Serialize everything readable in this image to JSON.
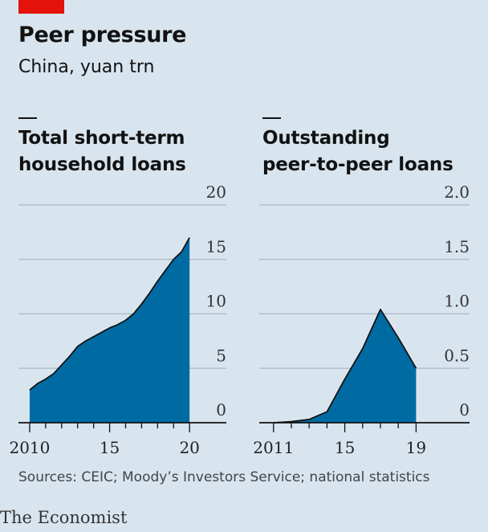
{
  "header": {
    "title": "Peer pressure",
    "subtitle": "China, yuan trn"
  },
  "colors": {
    "accent": "#e3120b",
    "fill": "#006ba2",
    "background": "#d8e5ef",
    "grid": "#a9b9c6"
  },
  "chart_data": [
    {
      "type": "area",
      "title_lines": [
        "Total short-term",
        "household loans"
      ],
      "xlim": [
        2009.3,
        2022.3
      ],
      "ylim": [
        0,
        20
      ],
      "yticks": [
        0,
        5,
        10,
        15,
        20
      ],
      "ytick_labels": [
        "0",
        "5",
        "10",
        "15",
        "20"
      ],
      "xticks": [
        2010,
        2011,
        2012,
        2013,
        2014,
        2015,
        2016,
        2017,
        2018,
        2019,
        2020
      ],
      "xtick_labels": [
        {
          "x": 2010,
          "label": "2010"
        },
        {
          "x": 2015,
          "label": "15"
        },
        {
          "x": 2020,
          "label": "20"
        }
      ],
      "series": [
        {
          "x": [
            2010.0,
            2010.5,
            2011.0,
            2011.5,
            2012.0,
            2012.5,
            2013.0,
            2013.5,
            2014.0,
            2014.5,
            2015.0,
            2015.5,
            2016.0,
            2016.5,
            2017.0,
            2017.5,
            2018.0,
            2018.5,
            2019.0,
            2019.5,
            2020.0
          ],
          "values": [
            3.0,
            3.6,
            4.0,
            4.5,
            5.3,
            6.1,
            7.0,
            7.5,
            7.9,
            8.3,
            8.7,
            9.0,
            9.4,
            10.0,
            10.9,
            11.9,
            13.0,
            14.0,
            15.0,
            15.7,
            17.0
          ]
        }
      ]
    },
    {
      "type": "area",
      "title_lines": [
        "Outstanding",
        "peer-to-peer loans"
      ],
      "xlim": [
        2010.2,
        2022.0
      ],
      "ylim": [
        0,
        2.0
      ],
      "yticks": [
        0,
        0.5,
        1.0,
        1.5,
        2.0
      ],
      "ytick_labels": [
        "0",
        "0.5",
        "1.0",
        "1.5",
        "2.0"
      ],
      "xticks": [
        2011,
        2012,
        2013,
        2014,
        2015,
        2016,
        2017,
        2018,
        2019
      ],
      "xtick_labels": [
        {
          "x": 2011,
          "label": "2011"
        },
        {
          "x": 2015,
          "label": "15"
        },
        {
          "x": 2019,
          "label": "19"
        }
      ],
      "series": [
        {
          "x": [
            2011.0,
            2012.0,
            2013.0,
            2014.0,
            2015.0,
            2016.0,
            2017.0,
            2018.0,
            2019.0
          ],
          "values": [
            0.0,
            0.01,
            0.03,
            0.1,
            0.4,
            0.68,
            1.04,
            0.78,
            0.5
          ]
        }
      ]
    }
  ],
  "footer": {
    "source": "Sources: CEIC; Moody’s Investors Service; national statistics",
    "brand": "The Economist"
  }
}
